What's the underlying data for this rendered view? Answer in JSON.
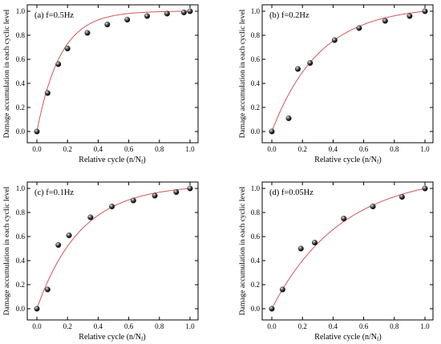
{
  "chart_data": [
    {
      "type": "scatter",
      "title": "(a) f=0.5Hz",
      "xlabel": "Relative cycle (n/N",
      "xlabel_sub": "f",
      "xlabel_end": ")",
      "ylabel": "Damage accumulation in each cyclic level",
      "xlim": [
        0,
        1
      ],
      "ylim": [
        0,
        1
      ],
      "xticks": [
        "0.0",
        "0.2",
        "0.4",
        "0.6",
        "0.8",
        "1.0"
      ],
      "yticks": [
        "0.0",
        "0.2",
        "0.4",
        "0.6",
        "0.8",
        "1.0"
      ],
      "points": {
        "x": [
          0.0,
          0.07,
          0.14,
          0.2,
          0.33,
          0.46,
          0.59,
          0.72,
          0.85,
          0.96,
          1.0
        ],
        "y": [
          0.0,
          0.32,
          0.56,
          0.69,
          0.82,
          0.89,
          0.93,
          0.96,
          0.98,
          0.99,
          1.0
        ]
      },
      "fit_curve_k": 6.5,
      "marker_color": "#1a1a1a",
      "curve_color": "#d2565a"
    },
    {
      "type": "scatter",
      "title": "(b) f=0.2Hz",
      "xlabel": "Relative cycle (n/N",
      "xlabel_sub": "f",
      "xlabel_end": ")",
      "ylabel": "Damage accumulation in each cyclic level",
      "xlim": [
        0,
        1
      ],
      "ylim": [
        0,
        1
      ],
      "xticks": [
        "0.0",
        "0.2",
        "0.4",
        "0.6",
        "0.8",
        "1.0"
      ],
      "yticks": [
        "0.0",
        "0.2",
        "0.4",
        "0.6",
        "0.8",
        "1.0"
      ],
      "points": {
        "x": [
          0.0,
          0.11,
          0.17,
          0.25,
          0.41,
          0.57,
          0.74,
          0.9,
          1.0
        ],
        "y": [
          0.0,
          0.11,
          0.52,
          0.57,
          0.76,
          0.86,
          0.92,
          0.96,
          1.0
        ]
      },
      "fit_curve_k": 3.2,
      "marker_color": "#1a1a1a",
      "curve_color": "#d2565a"
    },
    {
      "type": "scatter",
      "title": "(c) f=0.1Hz",
      "xlabel": "Relative cycle (n/N",
      "xlabel_sub": "f",
      "xlabel_end": ")",
      "ylabel": "Damage accumulation in each cyclic level",
      "xlim": [
        0,
        1
      ],
      "ylim": [
        0,
        1
      ],
      "xticks": [
        "0.0",
        "0.2",
        "0.4",
        "0.6",
        "0.8",
        "1.0"
      ],
      "yticks": [
        "0.0",
        "0.2",
        "0.4",
        "0.6",
        "0.8",
        "1.0"
      ],
      "points": {
        "x": [
          0.0,
          0.07,
          0.14,
          0.21,
          0.35,
          0.49,
          0.63,
          0.77,
          0.91,
          1.0
        ],
        "y": [
          0.0,
          0.16,
          0.53,
          0.61,
          0.76,
          0.85,
          0.9,
          0.94,
          0.97,
          1.0
        ]
      },
      "fit_curve_k": 3.5,
      "marker_color": "#1a1a1a",
      "curve_color": "#d2565a"
    },
    {
      "type": "scatter",
      "title": "(d) f=0.05Hz",
      "xlabel": "Relative cycle (n/N",
      "xlabel_sub": "f",
      "xlabel_end": ")",
      "ylabel": "Damage accumulation in each cyclic level",
      "xlim": [
        0,
        1
      ],
      "ylim": [
        0,
        1
      ],
      "xticks": [
        "0.0",
        "0.2",
        "0.4",
        "0.6",
        "0.8",
        "1.0"
      ],
      "yticks": [
        "0.0",
        "0.2",
        "0.4",
        "0.6",
        "0.8",
        "1.0"
      ],
      "points": {
        "x": [
          0.0,
          0.07,
          0.19,
          0.28,
          0.47,
          0.66,
          0.85,
          1.0
        ],
        "y": [
          0.0,
          0.16,
          0.5,
          0.55,
          0.75,
          0.85,
          0.93,
          1.0
        ]
      },
      "fit_curve_k": 2.2,
      "marker_color": "#1a1a1a",
      "curve_color": "#d2565a"
    }
  ]
}
